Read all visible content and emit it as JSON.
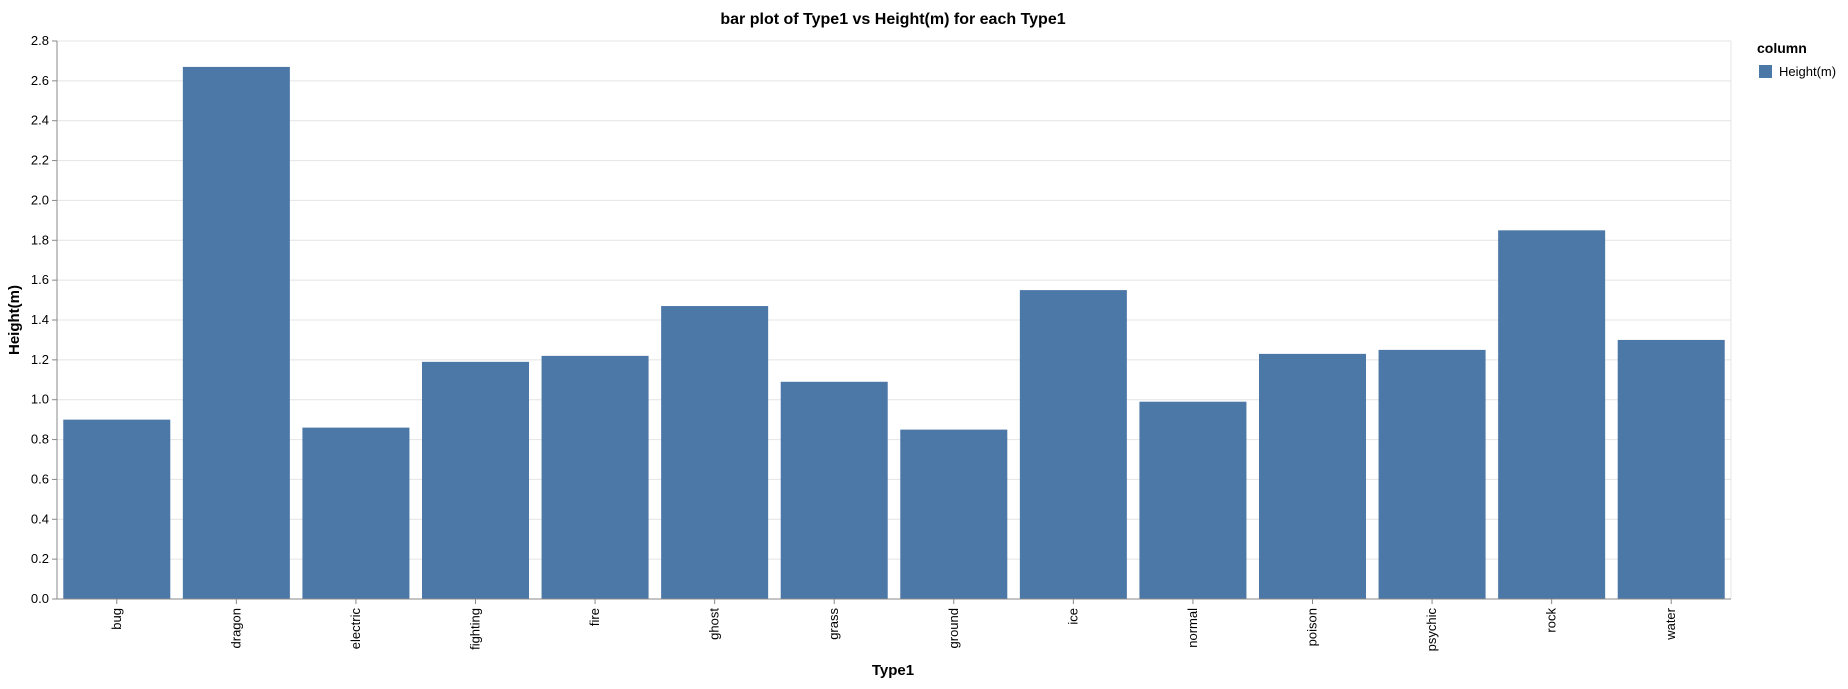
{
  "chart_data": {
    "type": "bar",
    "title": "bar plot of Type1 vs Height(m) for each Type1",
    "xlabel": "Type1",
    "ylabel": "Height(m)",
    "categories": [
      "bug",
      "dragon",
      "electric",
      "fighting",
      "fire",
      "ghost",
      "grass",
      "ground",
      "ice",
      "normal",
      "poison",
      "psychic",
      "rock",
      "water"
    ],
    "series": [
      {
        "name": "Height(m)",
        "values": [
          0.9,
          2.67,
          0.86,
          1.19,
          1.22,
          1.47,
          1.09,
          0.85,
          1.55,
          0.99,
          1.23,
          1.25,
          1.85,
          1.3
        ],
        "color": "#4c78a8"
      }
    ],
    "ylim": [
      0,
      2.8
    ],
    "yticks": [
      "0.0",
      "0.2",
      "0.4",
      "0.6",
      "0.8",
      "1.0",
      "1.2",
      "1.4",
      "1.6",
      "1.8",
      "2.0",
      "2.2",
      "2.4",
      "2.6",
      "2.8"
    ],
    "grid": true,
    "legend": {
      "title": "column",
      "position": "top-right",
      "entries": [
        "Height(m)"
      ]
    }
  }
}
